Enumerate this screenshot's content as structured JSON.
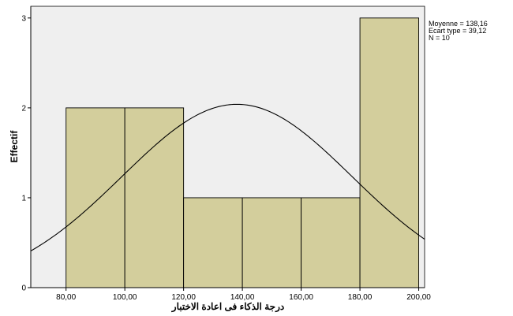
{
  "chart_data": {
    "type": "bar",
    "subtype": "histogram",
    "bins": [
      {
        "start": 80,
        "end": 100,
        "count": 2
      },
      {
        "start": 100,
        "end": 120,
        "count": 2
      },
      {
        "start": 120,
        "end": 140,
        "count": 1
      },
      {
        "start": 140,
        "end": 160,
        "count": 1
      },
      {
        "start": 160,
        "end": 180,
        "count": 1
      },
      {
        "start": 180,
        "end": 200,
        "count": 3
      }
    ],
    "x_ticks": [
      {
        "value": 80,
        "label": "80,00"
      },
      {
        "value": 100,
        "label": "100,00"
      },
      {
        "value": 120,
        "label": "120,00"
      },
      {
        "value": 140,
        "label": "140,00"
      },
      {
        "value": 160,
        "label": "160,00"
      },
      {
        "value": 180,
        "label": "180,00"
      },
      {
        "value": 200,
        "label": "200,00"
      }
    ],
    "y_ticks": [
      {
        "value": 0,
        "label": "0"
      },
      {
        "value": 1,
        "label": "1"
      },
      {
        "value": 2,
        "label": "2"
      },
      {
        "value": 3,
        "label": "3"
      }
    ],
    "xlim": [
      68,
      202
    ],
    "ylim": [
      0,
      3.13
    ],
    "xlabel": "درجة الذكاء فى اعادة الاختبار",
    "ylabel": "Effectif",
    "normal_curve": {
      "mean": 138.16,
      "sd": 39.12,
      "n": 10,
      "bin_width": 20
    },
    "stats": {
      "mean_label": "Moyenne = 138,16",
      "sd_label": "Ecart type = 39,12",
      "n_label": "N = 10"
    },
    "colors": {
      "plot_background": "#efefef",
      "bar_fill": "#d3ce9c",
      "bar_stroke": "#000000",
      "curve": "#000000"
    },
    "grid": false
  }
}
